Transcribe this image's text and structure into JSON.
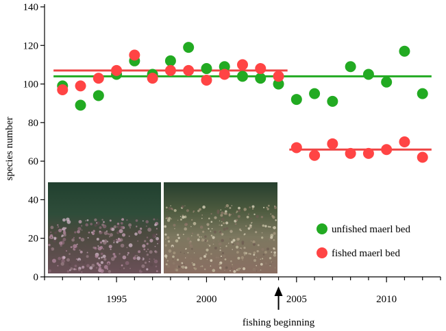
{
  "chart_data": {
    "type": "scatter",
    "title": "",
    "xlabel": "",
    "ylabel": "species number",
    "xlim": [
      1991,
      2013
    ],
    "ylim": [
      0,
      140
    ],
    "x_ticks": [
      1995,
      2000,
      2005,
      2010
    ],
    "y_ticks": [
      0,
      20,
      40,
      60,
      80,
      100,
      120,
      140
    ],
    "grid": false,
    "legend_position": "lower-right",
    "series": [
      {
        "name": "unfished maerl bed",
        "color": "#22aa22",
        "points": [
          {
            "x": 1992,
            "y": 99
          },
          {
            "x": 1993,
            "y": 89
          },
          {
            "x": 1994,
            "y": 94
          },
          {
            "x": 1995,
            "y": 105
          },
          {
            "x": 1996,
            "y": 112
          },
          {
            "x": 1997,
            "y": 105
          },
          {
            "x": 1998,
            "y": 112
          },
          {
            "x": 1999,
            "y": 119
          },
          {
            "x": 2000,
            "y": 108
          },
          {
            "x": 2001,
            "y": 109
          },
          {
            "x": 2002,
            "y": 104
          },
          {
            "x": 2003,
            "y": 103
          },
          {
            "x": 2004,
            "y": 100
          },
          {
            "x": 2005,
            "y": 92
          },
          {
            "x": 2006,
            "y": 95
          },
          {
            "x": 2007,
            "y": 91
          },
          {
            "x": 2008,
            "y": 109
          },
          {
            "x": 2009,
            "y": 105
          },
          {
            "x": 2010,
            "y": 101
          },
          {
            "x": 2011,
            "y": 117
          },
          {
            "x": 2012,
            "y": 95
          }
        ],
        "mean_line": {
          "x_start": 1991.5,
          "x_end": 2012.5,
          "y": 104
        }
      },
      {
        "name": "fished maerl bed",
        "color": "#ff4444",
        "points": [
          {
            "x": 1992,
            "y": 97
          },
          {
            "x": 1993,
            "y": 99
          },
          {
            "x": 1994,
            "y": 103
          },
          {
            "x": 1995,
            "y": 107
          },
          {
            "x": 1996,
            "y": 115
          },
          {
            "x": 1997,
            "y": 103
          },
          {
            "x": 1998,
            "y": 107
          },
          {
            "x": 1999,
            "y": 107
          },
          {
            "x": 2000,
            "y": 102
          },
          {
            "x": 2001,
            "y": 105
          },
          {
            "x": 2002,
            "y": 110
          },
          {
            "x": 2003,
            "y": 108
          },
          {
            "x": 2004,
            "y": 104
          },
          {
            "x": 2005,
            "y": 67
          },
          {
            "x": 2006,
            "y": 63
          },
          {
            "x": 2007,
            "y": 69
          },
          {
            "x": 2008,
            "y": 64
          },
          {
            "x": 2009,
            "y": 64
          },
          {
            "x": 2010,
            "y": 66
          },
          {
            "x": 2011,
            "y": 70
          },
          {
            "x": 2012,
            "y": 62
          }
        ],
        "mean_lines": [
          {
            "x_start": 1991.5,
            "x_end": 2004.5,
            "y": 107
          },
          {
            "x_start": 2004.6,
            "x_end": 2012.5,
            "y": 66
          }
        ]
      }
    ],
    "annotations": [
      {
        "text": "fishing beginning",
        "x": 2004,
        "type": "arrow"
      }
    ],
    "inset_images": [
      "unfished-seabed-photo",
      "fished-seabed-photo"
    ]
  }
}
